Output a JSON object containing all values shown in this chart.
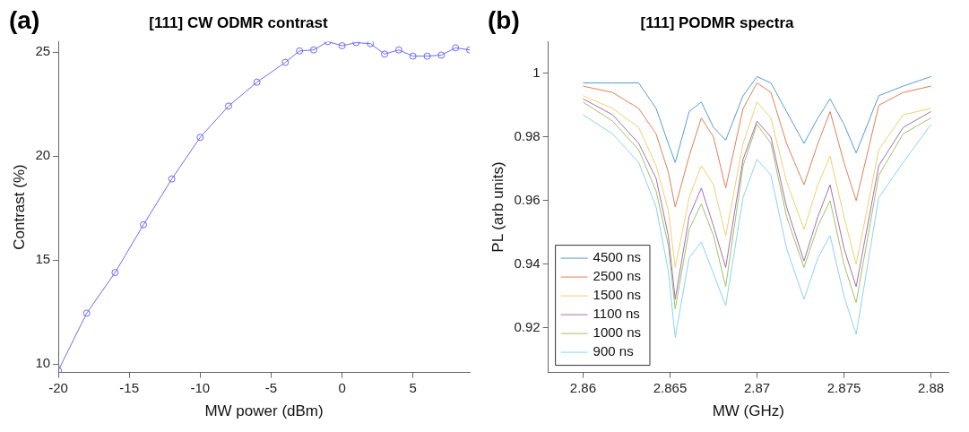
{
  "chart_data": [
    {
      "type": "line",
      "title": "[111] CW ODMR contrast",
      "xlabel": "MW power (dBm)",
      "ylabel": "Contrast (%)",
      "annotations": [
        "(a)"
      ],
      "marker": "circle",
      "legend": false,
      "xlim": [
        -20,
        9
      ],
      "xticks": [
        -20,
        -15,
        -10,
        -5,
        0,
        5
      ],
      "ylim": [
        9.6,
        25.5
      ],
      "yticks": [
        10,
        15,
        20,
        25
      ],
      "series": [
        {
          "color": "#6b6bf5",
          "x": [
            -20,
            -18,
            -16,
            -14,
            -12,
            -10,
            -8,
            -6,
            -4,
            -3,
            -2,
            -1,
            0,
            1,
            2,
            3,
            4,
            5,
            6,
            7,
            8,
            9
          ],
          "values": [
            9.7,
            12.45,
            14.4,
            16.7,
            18.9,
            20.9,
            22.4,
            23.55,
            24.5,
            25.05,
            25.1,
            25.5,
            25.3,
            25.45,
            25.4,
            24.9,
            25.1,
            24.8,
            24.8,
            24.85,
            25.2,
            25.1
          ]
        }
      ]
    },
    {
      "type": "line",
      "title": "[111] PODMR spectra",
      "xlabel": "MW (GHz)",
      "ylabel": "PL (arb units)",
      "annotations": [
        "(b)"
      ],
      "marker": "none",
      "legend": "bottom left",
      "xlim": [
        2.858,
        2.881
      ],
      "xticks": [
        2.86,
        2.865,
        2.87,
        2.875,
        2.88
      ],
      "ylim": [
        0.906,
        1.01
      ],
      "yticks": [
        0.92,
        0.94,
        0.96,
        0.98,
        1
      ],
      "x": [
        2.86,
        2.8617,
        2.8632,
        2.8642,
        2.8649,
        2.8653,
        2.8661,
        2.8668,
        2.8675,
        2.8682,
        2.8692,
        2.87,
        2.8708,
        2.8717,
        2.8727,
        2.8735,
        2.8742,
        2.875,
        2.8757,
        2.877,
        2.8784,
        2.88
      ],
      "series": [
        {
          "name": "4500 ns",
          "color": "#5a9bd4",
          "values": [
            0.997,
            0.997,
            0.997,
            0.989,
            0.978,
            0.972,
            0.988,
            0.991,
            0.983,
            0.979,
            0.993,
            0.999,
            0.997,
            0.988,
            0.978,
            0.986,
            0.992,
            0.984,
            0.975,
            0.993,
            0.996,
            0.999
          ]
        },
        {
          "name": "2500 ns",
          "color": "#e0805a",
          "values": [
            0.996,
            0.994,
            0.989,
            0.981,
            0.969,
            0.958,
            0.974,
            0.986,
            0.98,
            0.964,
            0.989,
            0.997,
            0.994,
            0.978,
            0.965,
            0.978,
            0.988,
            0.972,
            0.96,
            0.99,
            0.994,
            0.996
          ]
        },
        {
          "name": "1500 ns",
          "color": "#f2cf6e",
          "values": [
            0.993,
            0.989,
            0.983,
            0.971,
            0.957,
            0.939,
            0.961,
            0.971,
            0.965,
            0.949,
            0.978,
            0.991,
            0.986,
            0.966,
            0.951,
            0.965,
            0.974,
            0.955,
            0.94,
            0.976,
            0.987,
            0.989
          ]
        },
        {
          "name": "1100 ns",
          "color": "#a66fb2",
          "values": [
            0.992,
            0.987,
            0.978,
            0.967,
            0.949,
            0.929,
            0.955,
            0.964,
            0.952,
            0.939,
            0.973,
            0.985,
            0.98,
            0.958,
            0.941,
            0.955,
            0.965,
            0.945,
            0.933,
            0.971,
            0.983,
            0.988
          ]
        },
        {
          "name": "1000 ns",
          "color": "#9cc46a",
          "values": [
            0.991,
            0.985,
            0.976,
            0.963,
            0.946,
            0.926,
            0.951,
            0.959,
            0.949,
            0.933,
            0.971,
            0.984,
            0.978,
            0.955,
            0.939,
            0.952,
            0.96,
            0.94,
            0.928,
            0.968,
            0.981,
            0.986
          ]
        },
        {
          "name": "900 ns",
          "color": "#8ad3f3",
          "values": [
            0.987,
            0.981,
            0.972,
            0.958,
            0.938,
            0.917,
            0.942,
            0.947,
            0.937,
            0.927,
            0.961,
            0.973,
            0.968,
            0.945,
            0.929,
            0.942,
            0.949,
            0.93,
            0.918,
            0.961,
            0.972,
            0.984
          ]
        }
      ]
    }
  ]
}
